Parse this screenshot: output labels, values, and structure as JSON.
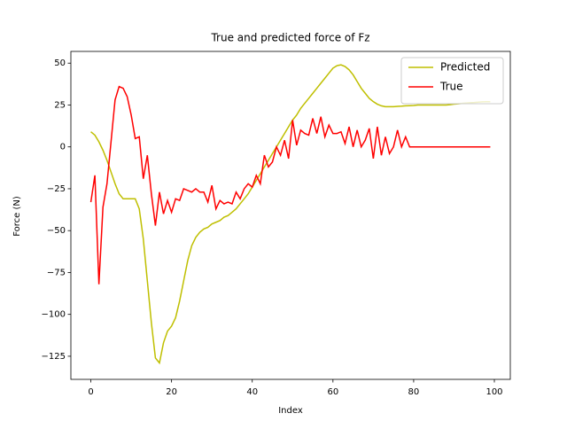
{
  "chart_data": {
    "type": "line",
    "title": "True and predicted force of Fz",
    "x_label": "Index",
    "y_label": "Force (N)",
    "x": [
      0,
      1,
      2,
      3,
      4,
      5,
      6,
      7,
      8,
      9,
      10,
      11,
      12,
      13,
      14,
      15,
      16,
      17,
      18,
      19,
      20,
      21,
      22,
      23,
      24,
      25,
      26,
      27,
      28,
      29,
      30,
      31,
      32,
      33,
      34,
      35,
      36,
      37,
      38,
      39,
      40,
      41,
      42,
      43,
      44,
      45,
      46,
      47,
      48,
      49,
      50,
      51,
      52,
      53,
      54,
      55,
      56,
      57,
      58,
      59,
      60,
      61,
      62,
      63,
      64,
      65,
      66,
      67,
      68,
      69,
      70,
      71,
      72,
      73,
      74,
      75,
      76,
      77,
      78,
      79,
      80,
      81,
      82,
      83,
      84,
      85,
      86,
      87,
      88,
      89,
      90,
      91,
      92,
      93,
      94,
      95,
      96,
      97,
      98,
      99
    ],
    "series": [
      {
        "name": "Predicted",
        "color": "#bfbf00",
        "values": [
          9,
          7,
          3,
          -2,
          -8,
          -15,
          -22,
          -28,
          -31,
          -31,
          -31,
          -31,
          -37,
          -55,
          -80,
          -105,
          -126,
          -129,
          -117,
          -110,
          -107,
          -102,
          -92,
          -80,
          -68,
          -59,
          -54,
          -51,
          -49,
          -48,
          -46,
          -45,
          -44,
          -42,
          -41,
          -39,
          -37,
          -34,
          -31,
          -28,
          -24,
          -20,
          -16,
          -12,
          -8,
          -4,
          0,
          4,
          8,
          12,
          16,
          19,
          23,
          26,
          29,
          32,
          35,
          38,
          41,
          44,
          47,
          48.5,
          49,
          48,
          46,
          43,
          39,
          35,
          32,
          29,
          27,
          25.5,
          24.5,
          24,
          24,
          24,
          24.2,
          24.3,
          24.5,
          24.6,
          24.7,
          25,
          25,
          25,
          25,
          25,
          25,
          25,
          25,
          25.2,
          25.5,
          25.7,
          26,
          26.2,
          26.4,
          26.5,
          26.7,
          26.9,
          27,
          27
        ]
      },
      {
        "name": "True",
        "color": "#ff0000",
        "values": [
          -33,
          -17,
          -82,
          -36,
          -22,
          3,
          28,
          36,
          35,
          30,
          19,
          5,
          6,
          -19,
          -5,
          -28,
          -47,
          -27,
          -40,
          -32,
          -39,
          -31,
          -32,
          -25,
          -26,
          -27,
          -25,
          -27,
          -27,
          -33,
          -23,
          -37,
          -32,
          -34,
          -33,
          -34,
          -27,
          -31,
          -25,
          -22,
          -24,
          -17,
          -22,
          -5,
          -12,
          -9,
          0,
          -5,
          4,
          -7,
          16,
          1,
          10,
          8,
          7,
          17,
          8,
          18,
          6,
          13,
          8,
          8,
          9,
          2,
          12,
          0,
          10,
          0,
          4,
          11,
          -7,
          12,
          -5,
          6,
          -4,
          0,
          10,
          0,
          6,
          0,
          0,
          0,
          0,
          0,
          0,
          0,
          0,
          0,
          0,
          0,
          0,
          0,
          0,
          0,
          0,
          0,
          0,
          0,
          0,
          0
        ]
      }
    ],
    "xlim": [
      -4.95,
      103.95
    ],
    "ylim": [
      -138.8,
      57
    ],
    "xticks": [
      0,
      20,
      40,
      60,
      80,
      100
    ],
    "yticks": [
      {
        "value": -125,
        "label": "−125"
      },
      {
        "value": -100,
        "label": "−100"
      },
      {
        "value": -75,
        "label": "−75"
      },
      {
        "value": -50,
        "label": "−50"
      },
      {
        "value": -25,
        "label": "−25"
      },
      0,
      25,
      50
    ],
    "legend": "upper right"
  }
}
